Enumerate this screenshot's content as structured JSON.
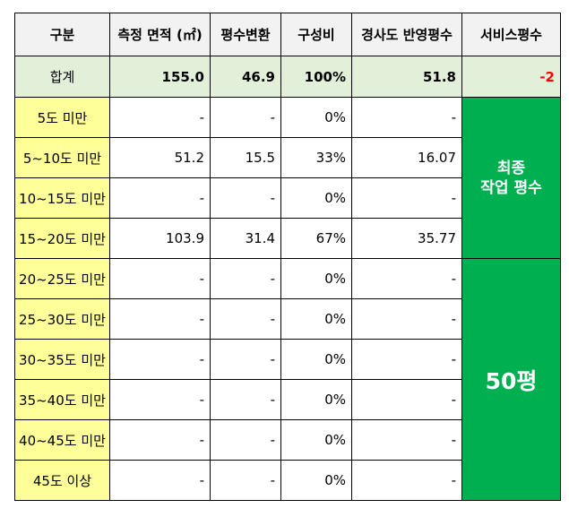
{
  "headers": [
    "구분",
    "측정 면적 (㎡)",
    "평수변환",
    "구성비",
    "경사도 반영평수",
    "서비스평수"
  ],
  "total": {
    "label": "합계",
    "area": "155.0",
    "pyeong": "46.9",
    "ratio": "100%",
    "slope": "51.8",
    "service": "-2"
  },
  "rows": [
    {
      "label": "5도 미만",
      "area": "-",
      "pyeong": "-",
      "ratio": "0%",
      "slope": "-"
    },
    {
      "label": "5~10도 미만",
      "area": "51.2",
      "pyeong": "15.5",
      "ratio": "33%",
      "slope": "16.07"
    },
    {
      "label": "10~15도 미만",
      "area": "-",
      "pyeong": "-",
      "ratio": "0%",
      "slope": "-"
    },
    {
      "label": "15~20도 미만",
      "area": "103.9",
      "pyeong": "31.4",
      "ratio": "67%",
      "slope": "35.77"
    },
    {
      "label": "20~25도 미만",
      "area": "-",
      "pyeong": "-",
      "ratio": "0%",
      "slope": "-"
    },
    {
      "label": "25~30도 미만",
      "area": "-",
      "pyeong": "-",
      "ratio": "0%",
      "slope": "-"
    },
    {
      "label": "30~35도 미만",
      "area": "-",
      "pyeong": "-",
      "ratio": "0%",
      "slope": "-"
    },
    {
      "label": "35~40도 미만",
      "area": "-",
      "pyeong": "-",
      "ratio": "0%",
      "slope": "-"
    },
    {
      "label": "40~45도 미만",
      "area": "-",
      "pyeong": "-",
      "ratio": "0%",
      "slope": "-"
    },
    {
      "label": "45도 이상",
      "area": "-",
      "pyeong": "-",
      "ratio": "0%",
      "slope": "-"
    }
  ],
  "final_work": {
    "line1": "최종",
    "line2": "작업 평수"
  },
  "result": "50평",
  "colors": {
    "header_bg": "#f2f2f2",
    "total_bg": "#e2f0d9",
    "label_bg": "#ffff99",
    "highlight_bg": "#00b050",
    "negative": "#ff0000"
  }
}
